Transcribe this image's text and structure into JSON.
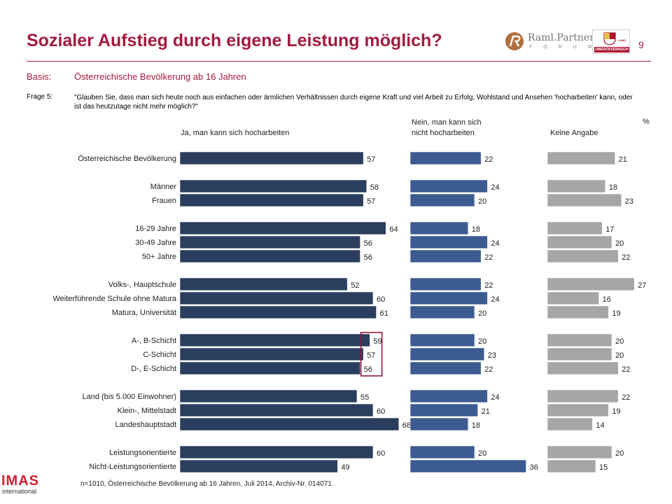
{
  "header": {
    "title": "Sozialer Aufstieg durch eigene Leistung möglich?",
    "page_number": "9",
    "logo_partner_name": "Raml.Partner",
    "logo_partner_sub": "F O R U M",
    "logo_region_land": "LAND",
    "logo_region_name": "OBERÖSTERREICH"
  },
  "basis": {
    "label": "Basis:",
    "value": "Österreichische Bevölkerung ab 16 Jahren"
  },
  "question": {
    "label": "Frage 5:",
    "text": "\"Glauben Sie, dass man sich heute noch aus einfachen oder ärmlichen Verhältnissen durch eigene Kraft und viel Arbeit zu Erfolg, Wohlstand und Ansehen 'hocharbeiten' kann, oder ist das heutzutage nicht mehr möglich?\""
  },
  "columns": {
    "yes": "Ja, man kann sich hocharbeiten",
    "no_line1": "Nein, man kann sich",
    "no_line2": "nicht hocharbeiten",
    "none": "Keine Angabe",
    "percent_sign": "%"
  },
  "footer": {
    "note": "n=1010, Österreichische Bevölkerung ab 16 Jahren, Juli 2014, Archiv-Nr. 014071",
    "logo_main": "IMAS",
    "logo_sub": "international"
  },
  "chart_data": {
    "type": "bar",
    "orientation": "horizontal",
    "unit": "%",
    "series": [
      {
        "name": "Ja, man kann sich hocharbeiten",
        "color": "#2c3e5e"
      },
      {
        "name": "Nein, man kann sich nicht hocharbeiten",
        "color": "#3b5b91"
      },
      {
        "name": "Keine Angabe",
        "color": "#a6a6a6"
      }
    ],
    "highlight": {
      "series": 0,
      "rows": [
        "A-, B-Schicht",
        "C-Schicht",
        "D-, E-Schicht"
      ],
      "color": "#8b1a35"
    },
    "groups": [
      {
        "rows": [
          {
            "label": "Österreichische Bevölkerung",
            "values": [
              57,
              22,
              21
            ]
          }
        ]
      },
      {
        "rows": [
          {
            "label": "Männer",
            "values": [
              58,
              24,
              18
            ]
          },
          {
            "label": "Frauen",
            "values": [
              57,
              20,
              23
            ]
          }
        ]
      },
      {
        "rows": [
          {
            "label": "16-29 Jahre",
            "values": [
              64,
              18,
              17
            ]
          },
          {
            "label": "30-49 Jahre",
            "values": [
              56,
              24,
              20
            ]
          },
          {
            "label": "50+ Jahre",
            "values": [
              56,
              22,
              22
            ]
          }
        ]
      },
      {
        "rows": [
          {
            "label": "Volks-, Hauptschule",
            "values": [
              52,
              22,
              27
            ]
          },
          {
            "label": "Weiterführende Schule ohne Matura",
            "values": [
              60,
              24,
              16
            ]
          },
          {
            "label": "Matura, Universität",
            "values": [
              61,
              20,
              19
            ]
          }
        ]
      },
      {
        "rows": [
          {
            "label": "A-, B-Schicht",
            "values": [
              59,
              20,
              20
            ]
          },
          {
            "label": "C-Schicht",
            "values": [
              57,
              23,
              20
            ]
          },
          {
            "label": "D-, E-Schicht",
            "values": [
              56,
              22,
              22
            ]
          }
        ]
      },
      {
        "rows": [
          {
            "label": "Land (bis 5.000 Einwohner)",
            "values": [
              55,
              24,
              22
            ]
          },
          {
            "label": "Klein-, Mittelstadt",
            "values": [
              60,
              21,
              19
            ]
          },
          {
            "label": "Landeshauptstadt",
            "values": [
              68,
              18,
              14
            ]
          }
        ]
      },
      {
        "rows": [
          {
            "label": "Leistungsorientierte",
            "values": [
              60,
              20,
              20
            ]
          },
          {
            "label": "Nicht-Leistungsorientierte",
            "values": [
              49,
              36,
              15
            ]
          }
        ]
      }
    ]
  }
}
